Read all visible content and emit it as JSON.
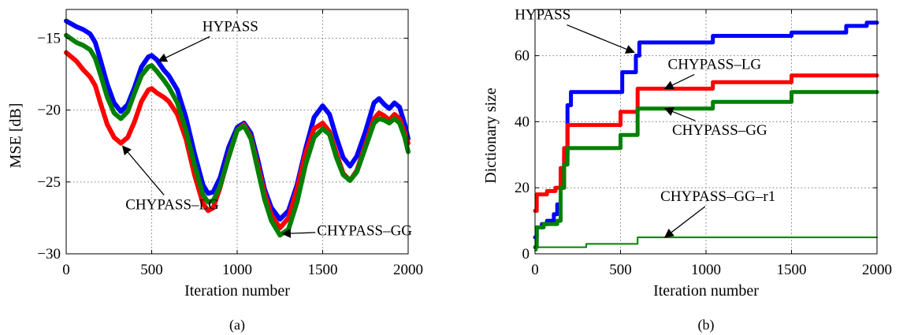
{
  "chart_data": [
    {
      "type": "line",
      "caption": "(a)",
      "xlabel": "Iteration number",
      "ylabel": "MSE [dB]",
      "xlim": [
        0,
        2000
      ],
      "ylim": [
        -30,
        -13
      ],
      "xticks": [
        0,
        500,
        1000,
        1500,
        2000
      ],
      "yticks": [
        -30,
        -25,
        -20,
        -15
      ],
      "grid": true,
      "series": [
        {
          "name": "HYPASS",
          "color": "#0000ff",
          "x": [
            0,
            60,
            100,
            140,
            170,
            200,
            240,
            280,
            320,
            360,
            400,
            440,
            480,
            500,
            530,
            570,
            600,
            650,
            700,
            750,
            800,
            830,
            860,
            900,
            950,
            1000,
            1040,
            1080,
            1120,
            1160,
            1200,
            1250,
            1300,
            1350,
            1400,
            1450,
            1500,
            1540,
            1580,
            1620,
            1660,
            1700,
            1750,
            1800,
            1830,
            1860,
            1890,
            1920,
            1950,
            1980,
            2000
          ],
          "y": [
            -13.8,
            -14.2,
            -14.4,
            -14.7,
            -15.3,
            -16.5,
            -18.2,
            -19.5,
            -20.1,
            -19.6,
            -18.4,
            -17.0,
            -16.3,
            -16.2,
            -16.5,
            -17.2,
            -17.6,
            -18.6,
            -20.5,
            -23.0,
            -25.2,
            -25.8,
            -25.7,
            -24.7,
            -22.6,
            -21.2,
            -20.9,
            -21.6,
            -23.4,
            -25.5,
            -26.8,
            -27.6,
            -27.0,
            -25.2,
            -22.7,
            -20.5,
            -19.7,
            -20.3,
            -21.9,
            -23.3,
            -23.9,
            -23.2,
            -21.5,
            -19.5,
            -19.2,
            -19.6,
            -19.9,
            -19.5,
            -19.8,
            -21.0,
            -22.0
          ]
        },
        {
          "name": "CHYPASS–LG",
          "color": "#ff0000",
          "x": [
            0,
            60,
            100,
            140,
            170,
            200,
            240,
            280,
            320,
            360,
            400,
            440,
            480,
            500,
            530,
            570,
            600,
            650,
            700,
            750,
            800,
            830,
            860,
            900,
            950,
            1000,
            1040,
            1080,
            1120,
            1160,
            1200,
            1250,
            1300,
            1350,
            1400,
            1450,
            1500,
            1540,
            1580,
            1620,
            1660,
            1700,
            1750,
            1800,
            1830,
            1860,
            1890,
            1920,
            1950,
            1980,
            2000
          ],
          "y": [
            -16.0,
            -16.6,
            -17.2,
            -17.7,
            -18.3,
            -19.5,
            -21.0,
            -21.9,
            -22.3,
            -21.9,
            -20.8,
            -19.4,
            -18.6,
            -18.5,
            -18.8,
            -19.1,
            -19.4,
            -20.3,
            -22.0,
            -24.5,
            -26.5,
            -27.0,
            -26.8,
            -25.4,
            -23.2,
            -21.4,
            -21.0,
            -21.9,
            -23.8,
            -25.8,
            -27.3,
            -28.2,
            -27.5,
            -25.5,
            -23.0,
            -21.3,
            -20.9,
            -21.5,
            -23.0,
            -24.4,
            -24.9,
            -24.2,
            -22.4,
            -20.6,
            -20.2,
            -20.4,
            -20.7,
            -20.3,
            -20.6,
            -21.6,
            -22.3
          ]
        },
        {
          "name": "CHYPASS–GG",
          "color": "#008000",
          "x": [
            0,
            60,
            100,
            140,
            170,
            200,
            240,
            280,
            320,
            360,
            400,
            440,
            480,
            500,
            530,
            570,
            600,
            650,
            700,
            750,
            800,
            830,
            860,
            900,
            950,
            1000,
            1040,
            1080,
            1120,
            1160,
            1200,
            1250,
            1300,
            1350,
            1400,
            1450,
            1500,
            1540,
            1580,
            1620,
            1660,
            1700,
            1750,
            1800,
            1830,
            1860,
            1890,
            1920,
            1950,
            1980,
            2000
          ],
          "y": [
            -14.8,
            -15.3,
            -15.5,
            -15.8,
            -16.4,
            -17.5,
            -19.1,
            -20.2,
            -20.6,
            -20.1,
            -18.8,
            -17.6,
            -17.0,
            -16.9,
            -17.3,
            -17.9,
            -18.4,
            -19.5,
            -21.4,
            -23.8,
            -25.9,
            -26.4,
            -26.3,
            -25.3,
            -23.3,
            -21.4,
            -21.1,
            -22.0,
            -24.1,
            -26.2,
            -27.7,
            -28.7,
            -28.3,
            -26.4,
            -23.8,
            -21.9,
            -21.3,
            -21.7,
            -23.3,
            -24.5,
            -24.9,
            -24.3,
            -22.6,
            -20.9,
            -20.6,
            -20.7,
            -20.9,
            -20.6,
            -20.9,
            -21.9,
            -22.9
          ]
        }
      ],
      "annotations": [
        {
          "text": "HYPASS",
          "x": 960,
          "y": -14.5,
          "point": [
            540,
            -16.6
          ]
        },
        {
          "text": "CHYPASS–LG",
          "x": 620,
          "y": -26.9,
          "point": [
            330,
            -22.5
          ]
        },
        {
          "text": "CHYPASS–GG",
          "x": 1745,
          "y": -28.7,
          "point": [
            1265,
            -28.6
          ]
        }
      ]
    },
    {
      "type": "line",
      "caption": "(b)",
      "xlabel": "Iteration number",
      "ylabel": "Dictionary size",
      "xlim": [
        0,
        2000
      ],
      "ylim": [
        0,
        74
      ],
      "xticks": [
        0,
        500,
        1000,
        1500,
        2000
      ],
      "yticks": [
        0,
        20,
        40,
        60
      ],
      "grid": true,
      "series": [
        {
          "name": "HYPASS",
          "color": "#0000ff",
          "x": [
            0,
            10,
            10,
            40,
            40,
            70,
            70,
            110,
            110,
            130,
            130,
            150,
            150,
            170,
            170,
            190,
            190,
            210,
            210,
            510,
            510,
            590,
            590,
            610,
            610,
            1040,
            1040,
            1500,
            1500,
            1820,
            1820,
            1940,
            1940,
            2000
          ],
          "y": [
            5,
            5,
            8,
            8,
            9,
            9,
            10,
            10,
            12,
            12,
            15,
            15,
            20,
            20,
            30,
            30,
            45,
            45,
            49,
            49,
            55,
            55,
            60,
            60,
            64,
            64,
            66,
            66,
            67,
            67,
            69,
            69,
            70,
            70
          ]
        },
        {
          "name": "CHYPASS–LG",
          "color": "#ff0000",
          "x": [
            0,
            10,
            10,
            70,
            70,
            120,
            120,
            150,
            150,
            170,
            170,
            190,
            190,
            500,
            500,
            600,
            600,
            1040,
            1040,
            1500,
            1500,
            2000
          ],
          "y": [
            13,
            13,
            18,
            18,
            19,
            19,
            20,
            20,
            26,
            26,
            32,
            32,
            39,
            39,
            43,
            43,
            50,
            50,
            52,
            52,
            54,
            54
          ]
        },
        {
          "name": "CHYPASS–GG",
          "color": "#008000",
          "x": [
            0,
            10,
            10,
            50,
            50,
            130,
            130,
            150,
            150,
            170,
            170,
            190,
            190,
            500,
            500,
            600,
            600,
            1040,
            1040,
            1500,
            1500,
            2000
          ],
          "y": [
            2,
            2,
            8,
            8,
            9,
            9,
            10,
            10,
            20,
            20,
            27,
            27,
            32,
            32,
            36,
            36,
            44,
            44,
            46,
            46,
            49,
            49
          ]
        },
        {
          "name": "CHYPASS–GG–r1",
          "color": "#008000",
          "x": [
            0,
            10,
            10,
            300,
            300,
            600,
            600,
            2000
          ],
          "y": [
            1,
            1,
            2,
            2,
            3,
            3,
            5,
            5
          ]
        }
      ],
      "annotations": [
        {
          "text": "HYPASS",
          "x": 45,
          "y": 71,
          "point": [
            580,
            61
          ]
        },
        {
          "text": "CHYPASS–LG",
          "x": 1050,
          "y": 56,
          "point": [
            760,
            50
          ]
        },
        {
          "text": "CHYPASS–GG",
          "x": 1080,
          "y": 36,
          "point": [
            760,
            44
          ]
        },
        {
          "text": "CHYPASS–GG–r1",
          "x": 1070,
          "y": 16,
          "point": [
            760,
            5
          ]
        }
      ]
    }
  ]
}
